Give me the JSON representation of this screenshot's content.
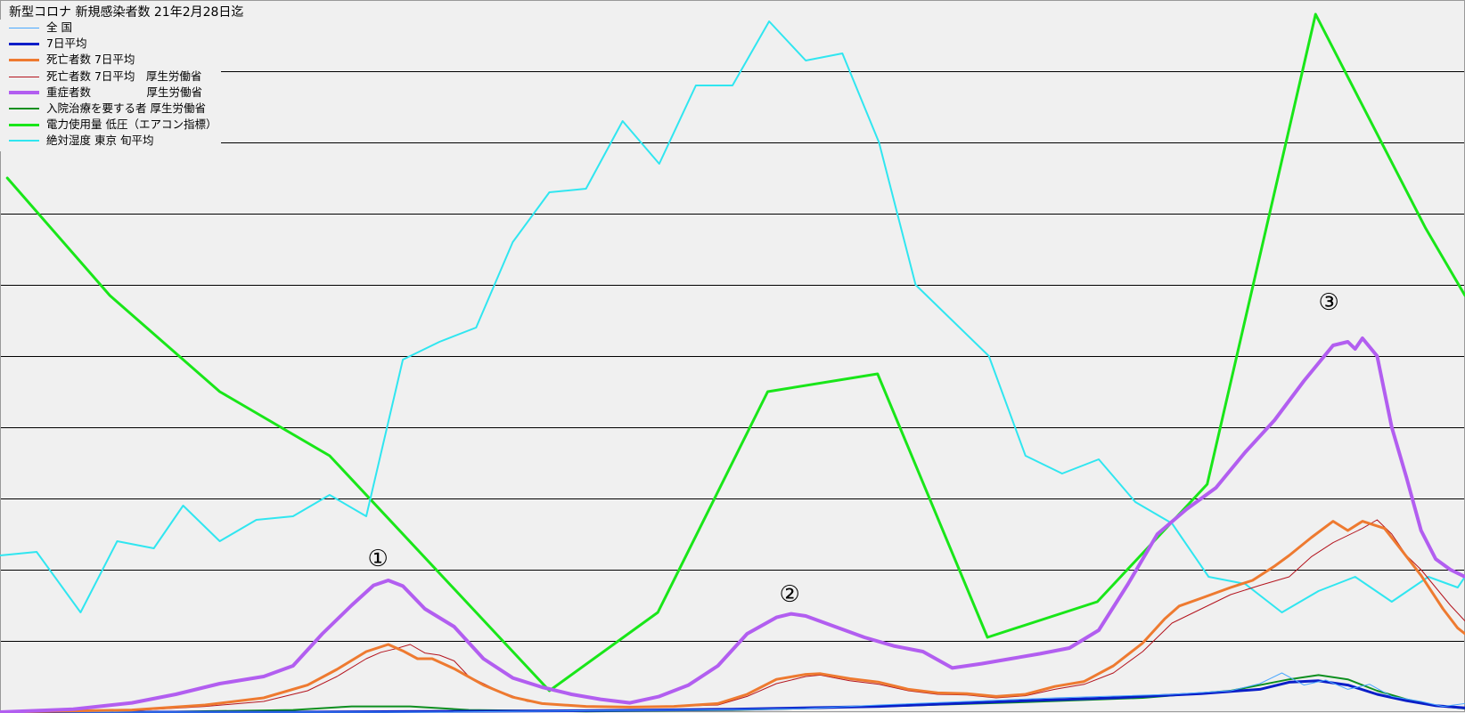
{
  "title": "新型コロナ 新規感染者数 21年2月28日迄",
  "chart_data": {
    "type": "line",
    "title": "新型コロナ 新規感染者数 21年2月28日迄",
    "xlabel": "",
    "ylabel": "",
    "x_range": [
      0,
      100
    ],
    "ylim": [
      0,
      100
    ],
    "grid": "horizontal",
    "legend_position": "top-left",
    "series": [
      {
        "name": "全 国",
        "color": "#4aa8ff",
        "width": 1,
        "points": [
          [
            0,
            0
          ],
          [
            10,
            0
          ],
          [
            20,
            0
          ],
          [
            30,
            0
          ],
          [
            40,
            0.2
          ],
          [
            48,
            0.3
          ],
          [
            55,
            0.5
          ],
          [
            60,
            1
          ],
          [
            66,
            1.5
          ],
          [
            72,
            2
          ],
          [
            80,
            2.5
          ],
          [
            84,
            3
          ],
          [
            86,
            4
          ],
          [
            87.5,
            5.5
          ],
          [
            89,
            3.8
          ],
          [
            90.5,
            4.5
          ],
          [
            92,
            3.2
          ],
          [
            93.5,
            3.9
          ],
          [
            95,
            2.2
          ],
          [
            97,
            1.5
          ],
          [
            98.5,
            0.8
          ],
          [
            100,
            1.2
          ]
        ]
      },
      {
        "name": "7日平均",
        "color": "#0a1ec8",
        "width": 3,
        "points": [
          [
            0,
            0
          ],
          [
            20,
            0
          ],
          [
            40,
            0.2
          ],
          [
            50,
            0.4
          ],
          [
            60,
            0.8
          ],
          [
            70,
            1.6
          ],
          [
            76,
            2
          ],
          [
            82,
            2.6
          ],
          [
            86,
            3.2
          ],
          [
            88,
            4.2
          ],
          [
            90,
            4.4
          ],
          [
            92,
            3.8
          ],
          [
            94,
            2.5
          ],
          [
            96,
            1.6
          ],
          [
            98,
            0.9
          ],
          [
            100,
            0.6
          ]
        ]
      },
      {
        "name": "死亡者数 7日平均",
        "color": "#ee7a30",
        "width": 3,
        "points": [
          [
            0,
            0
          ],
          [
            9,
            0.3
          ],
          [
            14,
            1
          ],
          [
            18,
            2
          ],
          [
            21,
            3.8
          ],
          [
            23,
            6
          ],
          [
            25,
            8.5
          ],
          [
            26.5,
            9.5
          ],
          [
            27.5,
            8.6
          ],
          [
            28.5,
            7.5
          ],
          [
            29.5,
            7.5
          ],
          [
            31,
            6.1
          ],
          [
            33,
            3.8
          ],
          [
            35,
            2.1
          ],
          [
            37,
            1.2
          ],
          [
            40,
            0.8
          ],
          [
            43,
            0.7
          ],
          [
            46,
            0.8
          ],
          [
            49,
            1.2
          ],
          [
            51,
            2.5
          ],
          [
            53,
            4.6
          ],
          [
            55,
            5.3
          ],
          [
            56,
            5.4
          ],
          [
            58,
            4.7
          ],
          [
            60,
            4.2
          ],
          [
            62,
            3.2
          ],
          [
            64,
            2.7
          ],
          [
            66,
            2.6
          ],
          [
            68,
            2.2
          ],
          [
            70,
            2.5
          ],
          [
            72,
            3.6
          ],
          [
            74,
            4.3
          ],
          [
            76,
            6.5
          ],
          [
            78,
            9.7
          ],
          [
            79.5,
            13.1
          ],
          [
            80.5,
            14.9
          ],
          [
            82,
            16
          ],
          [
            84,
            17.5
          ],
          [
            85.5,
            18.5
          ],
          [
            87,
            20.5
          ],
          [
            88,
            22
          ],
          [
            89.5,
            24.5
          ],
          [
            91,
            26.8
          ],
          [
            92,
            25.5
          ],
          [
            93,
            26.8
          ],
          [
            94.5,
            25.8
          ],
          [
            95.5,
            23.2
          ],
          [
            97,
            19.2
          ],
          [
            98.5,
            14.5
          ],
          [
            99.5,
            11.8
          ],
          [
            100,
            11
          ]
        ]
      },
      {
        "name": "死亡者数 7日平均　厚生労働省",
        "color": "#b4141e",
        "width": 1,
        "points": [
          [
            0,
            0
          ],
          [
            9,
            0.2
          ],
          [
            14,
            0.8
          ],
          [
            18,
            1.5
          ],
          [
            21,
            3
          ],
          [
            23,
            5
          ],
          [
            25,
            7.5
          ],
          [
            26,
            8.4
          ],
          [
            27,
            8.9
          ],
          [
            28,
            9.5
          ],
          [
            29,
            8.3
          ],
          [
            30,
            8
          ],
          [
            31,
            7.2
          ],
          [
            32,
            5
          ],
          [
            34,
            3
          ],
          [
            36,
            1.5
          ],
          [
            39,
            0.9
          ],
          [
            43,
            0.7
          ],
          [
            46,
            0.8
          ],
          [
            49,
            1
          ],
          [
            51,
            2.2
          ],
          [
            53,
            4
          ],
          [
            55,
            5
          ],
          [
            56,
            5.2
          ],
          [
            58,
            4.4
          ],
          [
            60,
            3.9
          ],
          [
            62,
            3
          ],
          [
            64,
            2.5
          ],
          [
            66,
            2.4
          ],
          [
            68,
            2
          ],
          [
            70,
            2.3
          ],
          [
            72,
            3.2
          ],
          [
            74,
            3.9
          ],
          [
            76,
            5.5
          ],
          [
            78,
            8.5
          ],
          [
            80,
            12.5
          ],
          [
            82,
            14.5
          ],
          [
            84,
            16.5
          ],
          [
            86,
            17.8
          ],
          [
            88,
            19
          ],
          [
            89.5,
            21.8
          ],
          [
            91,
            23.8
          ],
          [
            93,
            25.8
          ],
          [
            94,
            27
          ],
          [
            95,
            25
          ],
          [
            96,
            22
          ],
          [
            97,
            20
          ],
          [
            98,
            17.5
          ],
          [
            99,
            15
          ],
          [
            100,
            12.8
          ]
        ]
      },
      {
        "name": "重症者数　　　　　厚生労働省",
        "color": "#b25ef0",
        "width": 4,
        "points": [
          [
            0,
            0
          ],
          [
            5,
            0.4
          ],
          [
            9,
            1.3
          ],
          [
            12,
            2.5
          ],
          [
            15,
            4
          ],
          [
            18,
            5
          ],
          [
            20,
            6.5
          ],
          [
            22,
            11
          ],
          [
            24,
            15
          ],
          [
            25.5,
            17.8
          ],
          [
            26.5,
            18.5
          ],
          [
            27.5,
            17.7
          ],
          [
            29,
            14.5
          ],
          [
            31,
            12
          ],
          [
            33,
            7.5
          ],
          [
            35,
            4.8
          ],
          [
            37,
            3.5
          ],
          [
            39,
            2.5
          ],
          [
            41,
            1.8
          ],
          [
            43,
            1.3
          ],
          [
            45,
            2.2
          ],
          [
            47,
            3.8
          ],
          [
            49,
            6.5
          ],
          [
            51,
            11
          ],
          [
            53,
            13.3
          ],
          [
            54,
            13.8
          ],
          [
            55,
            13.5
          ],
          [
            57,
            12
          ],
          [
            59,
            10.5
          ],
          [
            61,
            9.3
          ],
          [
            63,
            8.5
          ],
          [
            65,
            6.2
          ],
          [
            67,
            6.8
          ],
          [
            69,
            7.5
          ],
          [
            71,
            8.2
          ],
          [
            73,
            9
          ],
          [
            75,
            11.5
          ],
          [
            77,
            18
          ],
          [
            79,
            25
          ],
          [
            81,
            28.5
          ],
          [
            83,
            31.5
          ],
          [
            85,
            36.5
          ],
          [
            87,
            41
          ],
          [
            89,
            46.5
          ],
          [
            90,
            49
          ],
          [
            91,
            51.5
          ],
          [
            92,
            52
          ],
          [
            92.5,
            51
          ],
          [
            93,
            52.5
          ],
          [
            94,
            50
          ],
          [
            95,
            40
          ],
          [
            96,
            33
          ],
          [
            97,
            25.5
          ],
          [
            98,
            21.5
          ],
          [
            99,
            20
          ],
          [
            100,
            19
          ]
        ]
      },
      {
        "name": "入院治療を要する者 厚生労働省",
        "color": "#0d8f1f",
        "width": 2,
        "points": [
          [
            0,
            0
          ],
          [
            10,
            0
          ],
          [
            20,
            0.3
          ],
          [
            24,
            0.8
          ],
          [
            28,
            0.8
          ],
          [
            32,
            0.3
          ],
          [
            40,
            0.1
          ],
          [
            50,
            0.3
          ],
          [
            60,
            0.8
          ],
          [
            70,
            1.4
          ],
          [
            78,
            2
          ],
          [
            84,
            3
          ],
          [
            88,
            4.6
          ],
          [
            90,
            5.2
          ],
          [
            92,
            4.6
          ],
          [
            94,
            3
          ],
          [
            96,
            1.8
          ],
          [
            98,
            0.9
          ],
          [
            100,
            0.5
          ]
        ]
      },
      {
        "name": "電力使用量 低圧（エアコン指標）",
        "color": "#19e619",
        "width": 3,
        "points": [
          [
            0.5,
            75
          ],
          [
            7.5,
            58.5
          ],
          [
            15,
            45
          ],
          [
            22.5,
            36
          ],
          [
            37.5,
            3
          ],
          [
            44.9,
            14
          ],
          [
            52.4,
            45
          ],
          [
            59.9,
            47.5
          ],
          [
            67.4,
            10.5
          ],
          [
            74.9,
            15.5
          ],
          [
            82.4,
            32
          ],
          [
            89.8,
            98
          ],
          [
            97.3,
            68
          ],
          [
            100,
            58.5
          ]
        ]
      },
      {
        "name": "絶対湿度 東京 旬平均",
        "color": "#30e6f0",
        "width": 2,
        "points": [
          [
            0,
            22
          ],
          [
            2.5,
            22.5
          ],
          [
            5.5,
            14
          ],
          [
            8,
            24
          ],
          [
            10.5,
            23
          ],
          [
            12.5,
            29
          ],
          [
            15,
            24
          ],
          [
            17.5,
            27
          ],
          [
            20,
            27.5
          ],
          [
            22.5,
            30.5
          ],
          [
            25,
            27.5
          ],
          [
            27.5,
            49.5
          ],
          [
            30,
            52
          ],
          [
            32.5,
            54
          ],
          [
            35,
            66
          ],
          [
            37.5,
            73
          ],
          [
            40,
            73.5
          ],
          [
            42.5,
            83
          ],
          [
            45,
            77
          ],
          [
            47.5,
            88
          ],
          [
            50,
            88
          ],
          [
            52.5,
            97
          ],
          [
            55,
            91.5
          ],
          [
            57.5,
            92.5
          ],
          [
            60,
            80
          ],
          [
            62.5,
            60
          ],
          [
            65,
            55
          ],
          [
            67.5,
            50
          ],
          [
            70,
            36
          ],
          [
            72.5,
            33.5
          ],
          [
            75,
            35.5
          ],
          [
            77.5,
            29.5
          ],
          [
            80,
            26.5
          ],
          [
            82.5,
            19
          ],
          [
            85,
            18
          ],
          [
            87.5,
            14
          ],
          [
            90,
            17
          ],
          [
            92.5,
            19
          ],
          [
            95,
            15.5
          ],
          [
            97.5,
            19
          ],
          [
            99.5,
            17.5
          ],
          [
            100,
            19
          ]
        ]
      }
    ],
    "annotations": [
      {
        "text": "①",
        "x": 25.8,
        "y": 20.5
      },
      {
        "text": "②",
        "x": 53.9,
        "y": 15.5
      },
      {
        "text": "③",
        "x": 90.7,
        "y": 56.5
      }
    ]
  }
}
